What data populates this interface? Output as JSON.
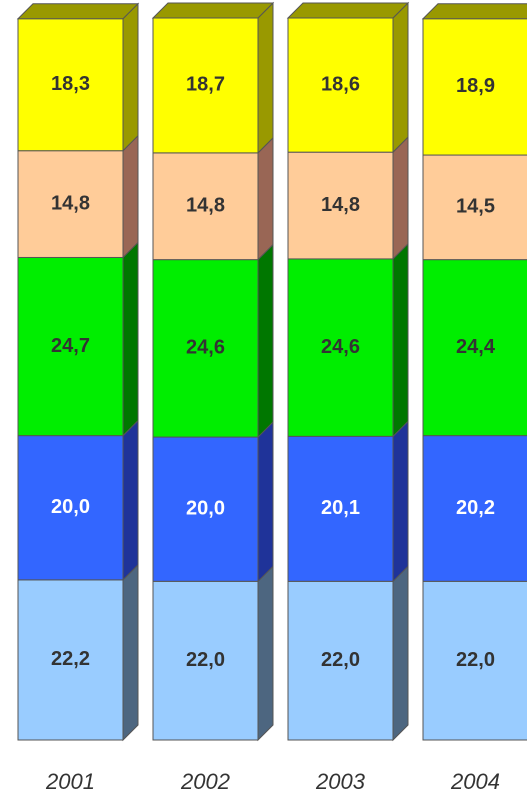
{
  "chart_data": {
    "type": "bar",
    "stacked": true,
    "categories": [
      "2001",
      "2002",
      "2003",
      "2004"
    ],
    "series": [
      {
        "color": "#99ccff",
        "side": "#4d6680",
        "label_color": "#333333",
        "values": [
          22.2,
          22.0,
          22.0,
          22.0
        ],
        "value_labels": [
          "22,2",
          "22,0",
          "22,0",
          "22,0"
        ]
      },
      {
        "color": "#3366ff",
        "side": "#1f3399",
        "label_color": "#ffffff",
        "values": [
          20.0,
          20.0,
          20.1,
          20.2
        ],
        "value_labels": [
          "20,0",
          "20,0",
          "20,1",
          "20,2"
        ]
      },
      {
        "color": "#00ee00",
        "side": "#007700",
        "label_color": "#333333",
        "values": [
          24.7,
          24.6,
          24.6,
          24.4
        ],
        "value_labels": [
          "24,7",
          "24,6",
          "24,6",
          "24,4"
        ]
      },
      {
        "color": "#ffcc99",
        "side": "#996655",
        "label_color": "#333333",
        "values": [
          14.8,
          14.8,
          14.8,
          14.5
        ],
        "value_labels": [
          "14,8",
          "14,8",
          "14,8",
          "14,5"
        ]
      },
      {
        "color": "#ffff00",
        "side": "#999900",
        "label_color": "#333333",
        "values": [
          18.3,
          18.7,
          18.6,
          18.9
        ],
        "value_labels": [
          "18,3",
          "18,7",
          "18,6",
          "18,9"
        ]
      }
    ]
  }
}
